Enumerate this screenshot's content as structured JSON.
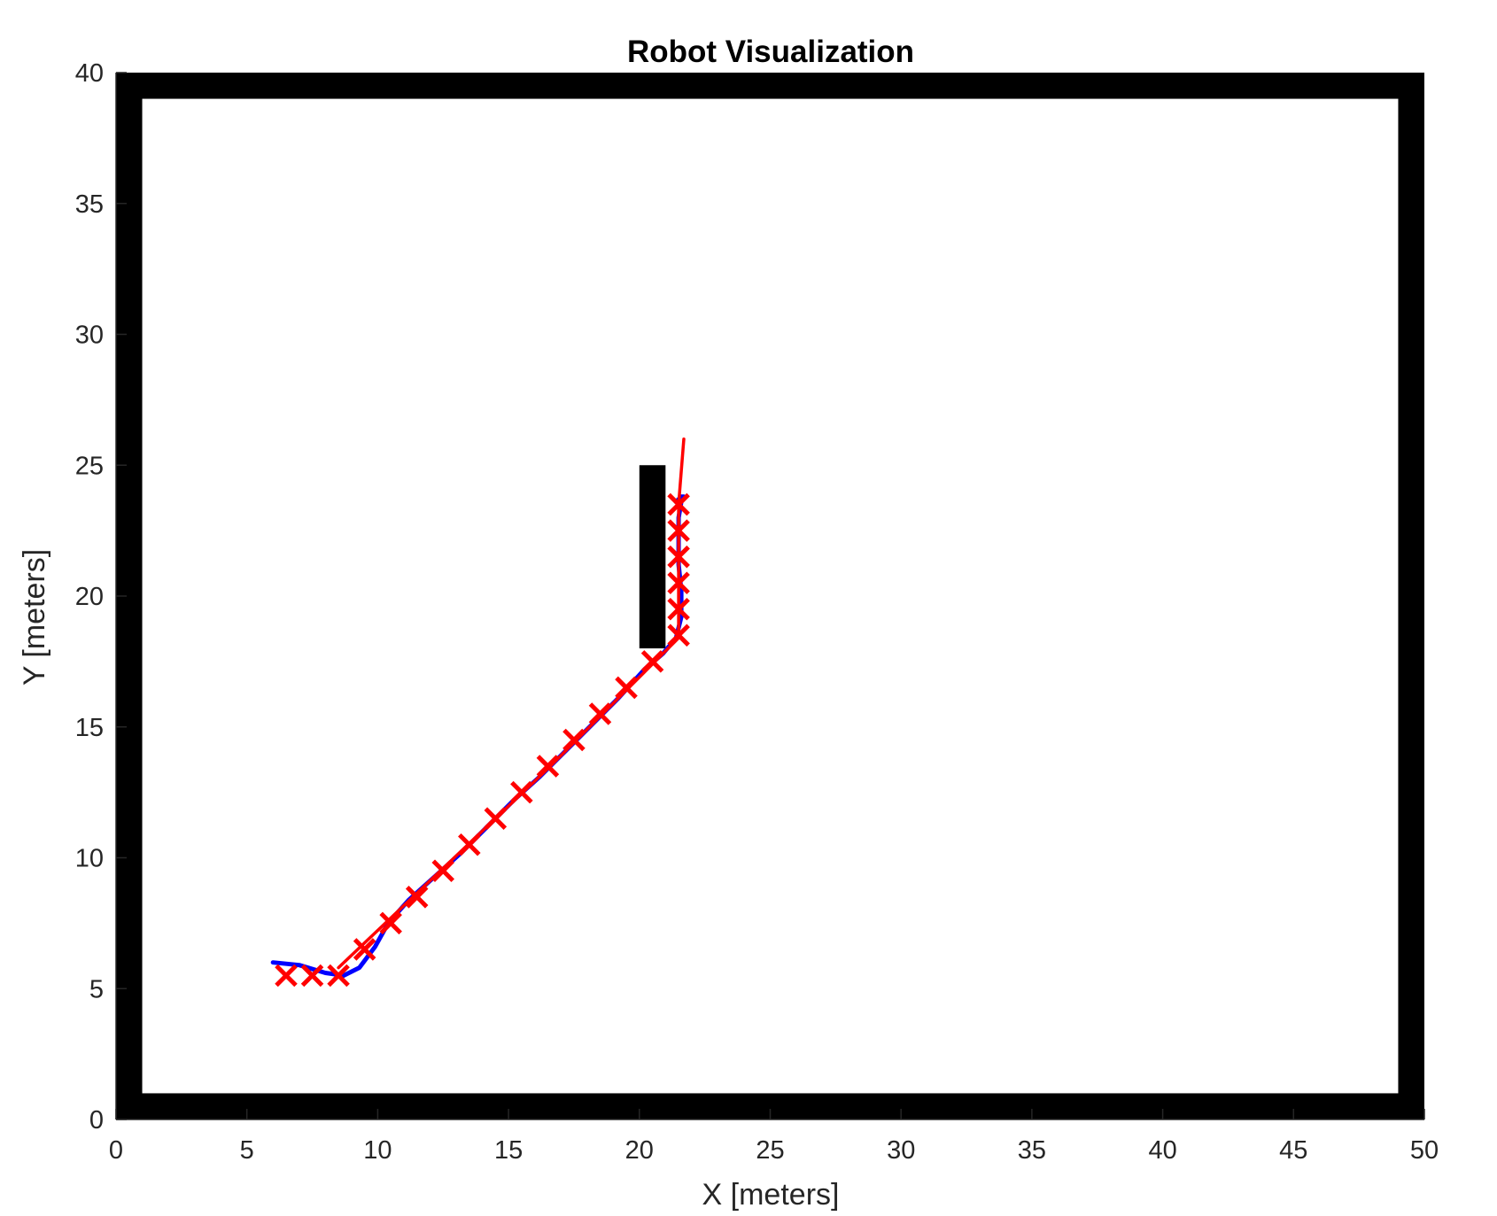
{
  "chart_data": {
    "type": "line",
    "title": "Robot Visualization",
    "xlabel": "X [meters]",
    "ylabel": "Y [meters]",
    "xlim": [
      0,
      50
    ],
    "ylim": [
      0,
      40
    ],
    "xticks": [
      0,
      5,
      10,
      15,
      20,
      25,
      30,
      35,
      40,
      45,
      50
    ],
    "yticks": [
      0,
      5,
      10,
      15,
      20,
      25,
      30,
      35,
      40
    ],
    "grid": false,
    "legend": "none",
    "colors": {
      "walls": "#000000",
      "path": "#0000ff",
      "waypoints": "#ff0000",
      "robot_track": "#ff0000",
      "axis": "#262626"
    },
    "walls": [
      {
        "x": [
          0,
          50
        ],
        "y": [
          0,
          1
        ]
      },
      {
        "x": [
          0,
          50
        ],
        "y": [
          39,
          40
        ]
      },
      {
        "x": [
          0,
          1
        ],
        "y": [
          0,
          40
        ]
      },
      {
        "x": [
          49,
          50
        ],
        "y": [
          0,
          40
        ]
      },
      {
        "x": [
          20,
          21
        ],
        "y": [
          18,
          25
        ]
      }
    ],
    "series": [
      {
        "marker": "line",
        "x": [
          6.0,
          7.0,
          8.0,
          8.7,
          9.3,
          9.9,
          10.4,
          11.2,
          12.2,
          13.2,
          14.2,
          15.2,
          16.2,
          17.2,
          18.2,
          19.2,
          20.2,
          20.9,
          21.4,
          21.6,
          21.6,
          21.5,
          21.5,
          21.5,
          21.6,
          21.7,
          21.6,
          21.4
        ],
        "y": [
          6.0,
          5.9,
          5.6,
          5.5,
          5.8,
          6.6,
          7.5,
          8.4,
          9.3,
          10.2,
          11.2,
          12.2,
          13.1,
          14.1,
          15.1,
          16.1,
          17.2,
          17.8,
          18.4,
          19.2,
          20.2,
          21.2,
          22.2,
          23.0,
          23.6,
          23.8,
          23.8,
          23.6
        ]
      },
      {
        "marker": "x",
        "x": [
          6.5,
          7.5,
          8.5,
          9.5,
          10.5,
          11.5,
          12.5,
          13.5,
          14.5,
          15.5,
          16.5,
          17.5,
          18.5,
          19.5,
          20.5,
          21.5,
          21.5,
          21.5,
          21.5,
          21.5,
          21.5
        ],
        "y": [
          5.5,
          5.5,
          5.5,
          6.5,
          7.5,
          8.5,
          9.5,
          10.5,
          11.5,
          12.5,
          13.5,
          14.5,
          15.5,
          16.5,
          17.5,
          18.5,
          19.5,
          20.5,
          21.5,
          22.5,
          23.5
        ]
      },
      {
        "marker": "line",
        "x": [
          8.5,
          10.5,
          12.5,
          14.5,
          16.5,
          18.5,
          20.5,
          21.5,
          21.5,
          21.5,
          21.7
        ],
        "y": [
          5.8,
          7.7,
          9.6,
          11.5,
          13.4,
          15.4,
          17.4,
          18.4,
          21.0,
          23.5,
          26.0
        ]
      }
    ]
  }
}
